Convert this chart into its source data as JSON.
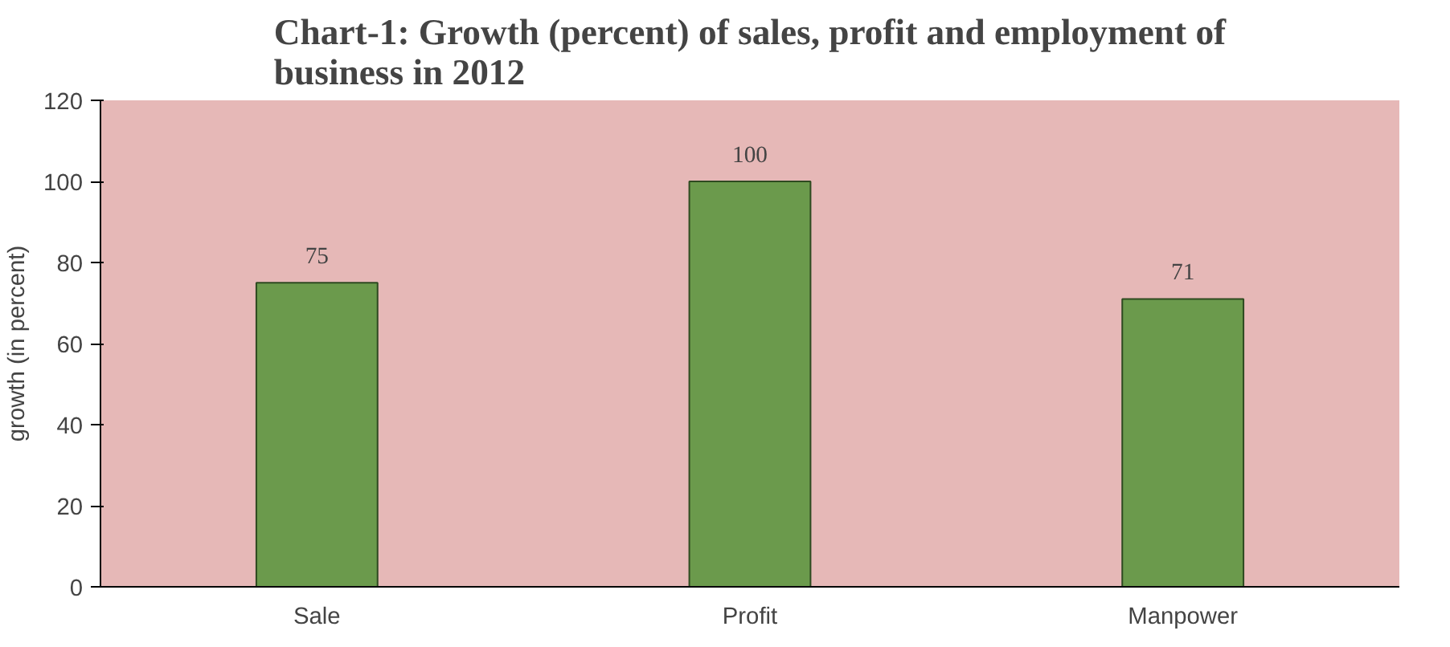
{
  "chart_data": {
    "type": "bar",
    "title": "Chart-1: Growth (percent) of sales, profit and employment of\nbusiness in 2012",
    "ylabel": "growth (in percent)",
    "categories": [
      "Sale",
      "Profit",
      "Manpower"
    ],
    "values": [
      75,
      100,
      71
    ],
    "color": "#6b9a4c",
    "ylim": [
      0,
      120
    ],
    "yticks": [
      0,
      20,
      40,
      60,
      80,
      100,
      120
    ],
    "data_labels": true
  }
}
